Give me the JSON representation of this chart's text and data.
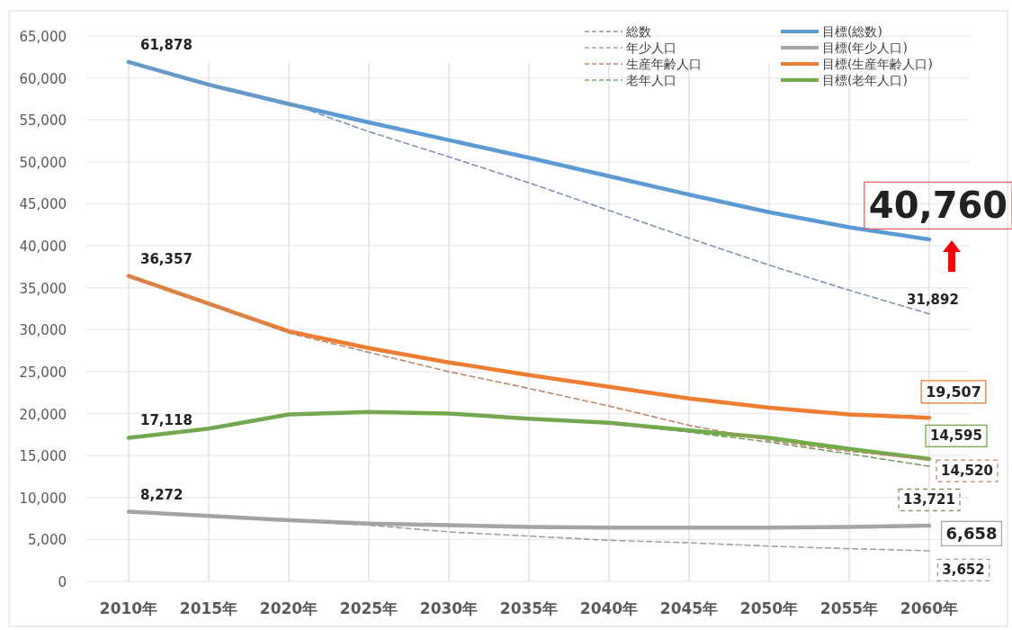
{
  "chart_data": {
    "type": "line",
    "categories": [
      "2010年",
      "2015年",
      "2020年",
      "2025年",
      "2030年",
      "2035年",
      "2040年",
      "2045年",
      "2050年",
      "2055年",
      "2060年"
    ],
    "ylim": [
      0,
      65000
    ],
    "yticks": [
      0,
      {
        "value": 5000,
        "label": "5,000"
      },
      {
        "value": 10000,
        "label": "10,000"
      },
      {
        "value": 15000,
        "label": "15,000"
      },
      {
        "value": 20000,
        "label": "20,000"
      },
      {
        "value": 25000,
        "label": "25,000"
      },
      {
        "value": 30000,
        "label": "30,000"
      },
      {
        "value": 35000,
        "label": "35,000"
      },
      {
        "value": 40000,
        "label": "40,000"
      },
      {
        "value": 45000,
        "label": "45,000"
      },
      {
        "value": 50000,
        "label": "50,000"
      },
      {
        "value": 55000,
        "label": "55,000"
      },
      {
        "value": 60000,
        "label": "60,000"
      },
      {
        "value": 65000,
        "label": "65,000"
      }
    ],
    "grid": true,
    "legend": "top right",
    "marker": "none",
    "series": [
      {
        "name": "総数",
        "color": "#7f93b0",
        "line_style": "dashed",
        "values": [
          61878,
          59200,
          57000,
          53600,
          50600,
          47500,
          44200,
          40900,
          37700,
          34700,
          31892
        ],
        "value_labels": [
          "61,878",
          null,
          null,
          null,
          null,
          null,
          null,
          null,
          null,
          null,
          "31,892"
        ]
      },
      {
        "name": "年少人口",
        "color": "#a0a0a0",
        "line_style": "dashed",
        "values": [
          8272,
          7800,
          7300,
          6700,
          5900,
          5400,
          4900,
          4600,
          4200,
          3900,
          3652
        ],
        "value_labels": [
          "8,272",
          null,
          null,
          null,
          null,
          null,
          null,
          null,
          null,
          null,
          "3,652"
        ]
      },
      {
        "name": "生産年齢人口",
        "color": "#b8896c",
        "line_style": "dashed",
        "values": [
          36357,
          33100,
          29600,
          27300,
          25000,
          23000,
          20900,
          18600,
          16800,
          15500,
          14520
        ],
        "value_labels": [
          "36,357",
          null,
          null,
          null,
          null,
          null,
          null,
          null,
          null,
          null,
          "14,520"
        ]
      },
      {
        "name": "老年人口",
        "color": "#7d9c68",
        "line_style": "dashed",
        "values": [
          17118,
          18200,
          19900,
          20200,
          20000,
          19400,
          18800,
          17800,
          16600,
          15200,
          13721
        ],
        "value_labels": [
          "17,118",
          null,
          null,
          null,
          null,
          null,
          null,
          null,
          null,
          null,
          "13,721"
        ]
      },
      {
        "name": "目標(総数)",
        "color": "#5b9bd5",
        "line_style": "solid",
        "values": [
          61900,
          59200,
          56900,
          54700,
          52600,
          50500,
          48300,
          46100,
          44000,
          42200,
          40760
        ],
        "value_labels": [
          null,
          null,
          null,
          null,
          null,
          null,
          null,
          null,
          null,
          null,
          "40,760"
        ]
      },
      {
        "name": "目標(年少人口)",
        "color": "#a5a5a5",
        "line_style": "solid",
        "values": [
          8300,
          7800,
          7300,
          6900,
          6700,
          6500,
          6400,
          6400,
          6400,
          6500,
          6658
        ],
        "value_labels": [
          null,
          null,
          null,
          null,
          null,
          null,
          null,
          null,
          null,
          null,
          "6,658"
        ]
      },
      {
        "name": "目標(生産年齢人口)",
        "color": "#ed7d31",
        "line_style": "solid",
        "values": [
          36400,
          33100,
          29800,
          27800,
          26100,
          24600,
          23200,
          21800,
          20700,
          19900,
          19507
        ],
        "value_labels": [
          null,
          null,
          null,
          null,
          null,
          null,
          null,
          null,
          null,
          null,
          "19,507"
        ]
      },
      {
        "name": "目標(老年人口)",
        "color": "#70ad47",
        "line_style": "solid",
        "values": [
          17100,
          18200,
          19900,
          20200,
          20000,
          19400,
          18900,
          18000,
          17100,
          15800,
          14595
        ],
        "value_labels": [
          null,
          null,
          null,
          null,
          null,
          null,
          null,
          null,
          null,
          null,
          "14,595"
        ]
      }
    ]
  }
}
